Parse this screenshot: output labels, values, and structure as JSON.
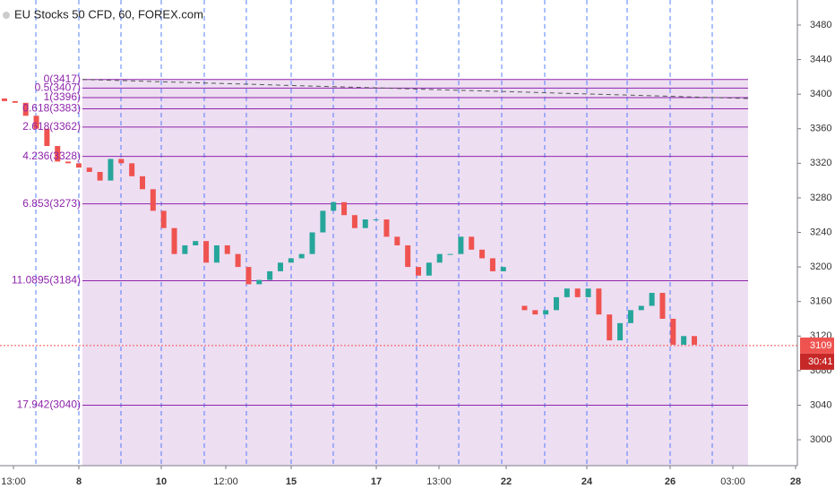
{
  "chart_data": {
    "type": "candlestick",
    "title": "EU Stocks 50 CFD, 60, FOREX.com",
    "open": [
      3395,
      3392,
      3390,
      3375,
      3360,
      3340,
      3322,
      3320,
      3315,
      3310,
      3300,
      3325,
      3320,
      3305,
      3290,
      3265,
      3245,
      3215,
      3225,
      3230,
      3205,
      3225,
      3215,
      3200,
      3180,
      3185,
      3195,
      3205,
      3210,
      3215,
      3240,
      3265,
      3275,
      3260,
      3245,
      3255,
      3255,
      3235,
      3225,
      3200,
      3190,
      3205,
      3215,
      3215,
      3235,
      3220,
      3210,
      3195,
      null,
      3155,
      3150,
      3145,
      3150,
      3165,
      3175,
      3165,
      3175,
      3145,
      3115,
      3135,
      3150,
      3155,
      3170,
      3140,
      3110,
      3120
    ],
    "close": [
      3392,
      3390,
      3375,
      3360,
      3340,
      3322,
      3320,
      3315,
      3310,
      3300,
      3325,
      3320,
      3305,
      3290,
      3265,
      3245,
      3215,
      3225,
      3230,
      3205,
      3225,
      3215,
      3200,
      3180,
      3185,
      3195,
      3205,
      3210,
      3215,
      3240,
      3265,
      3275,
      3260,
      3245,
      3255,
      3255,
      3235,
      3225,
      3200,
      3190,
      3205,
      3215,
      3215,
      3235,
      3220,
      3210,
      3195,
      3200,
      null,
      3150,
      3145,
      3150,
      3165,
      3175,
      3165,
      3175,
      3145,
      3115,
      3135,
      3150,
      3155,
      3170,
      3140,
      3110,
      3120,
      3110
    ],
    "up_color": "#26a69a",
    "down_color": "#ef5350",
    "ylim": [
      2970,
      3509
    ],
    "yticks": [
      3000,
      3040,
      3080,
      3120,
      3160,
      3200,
      3240,
      3280,
      3320,
      3360,
      3400,
      3440,
      3480
    ],
    "x_labels": [
      "13:00",
      "8",
      "10",
      "12:00",
      "15",
      "17",
      "13:00",
      "22",
      "24",
      "26",
      "03:00",
      "28"
    ],
    "fib_color": "#8e24aa",
    "fib_levels": [
      {
        "value": 3417,
        "label": "0(3417)"
      },
      {
        "value": 3407,
        "label": "0.5(3407)"
      },
      {
        "value": 3396,
        "label": "1(3396)"
      },
      {
        "value": 3383,
        "label": "0.618(3383)"
      },
      {
        "value": 3362,
        "label": "2.618(3362)"
      },
      {
        "value": 3328,
        "label": "4.236(3328)"
      },
      {
        "value": 3273,
        "label": "6.853(3273)"
      },
      {
        "value": 3184,
        "label": "11.0895(3184)"
      },
      {
        "value": 3040,
        "label": "17.942(3040)"
      }
    ],
    "last_price": 3109,
    "countdown": "30:41"
  }
}
